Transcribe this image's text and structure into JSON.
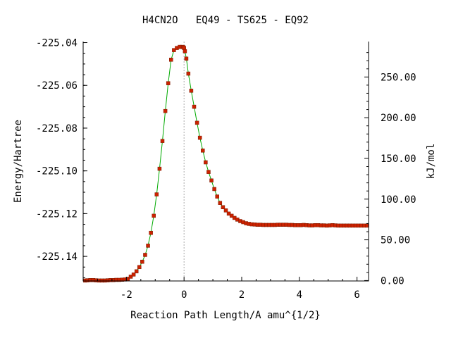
{
  "chart_data": {
    "type": "line",
    "title": "H4CN2O   EQ49 - TS625 - EQ92",
    "xlabel": "Reaction Path Length/A amu^{1/2}",
    "ylabel": "Energy/Hartree",
    "y2label": "kJ/mol",
    "xlim": [
      -3.5,
      6.4
    ],
    "ylim": [
      -225.1515,
      -225.0395
    ],
    "x_ticks": [
      -2,
      0,
      2,
      4,
      6
    ],
    "x_tick_labels": [
      "-2",
      "0",
      "2",
      "4",
      "6"
    ],
    "y_ticks": [
      -225.04,
      -225.06,
      -225.08,
      -225.1,
      -225.12,
      -225.14
    ],
    "y_tick_labels": [
      "-225.04",
      "-225.06",
      "-225.08",
      "-225.10",
      "-225.12",
      "-225.14"
    ],
    "y2_ticks": [
      0,
      50,
      100,
      150,
      200,
      250
    ],
    "y2_tick_labels": [
      "0.00",
      "50.00",
      "100.00",
      "150.00",
      "200.00",
      "250.00"
    ],
    "y2_ref_energy": -225.1513,
    "hartree_to_kjmol": 2625.5,
    "ts_x": 0,
    "colors": {
      "line": "#00aa00",
      "marker": "#cc2200",
      "marker_edge": "#7a1a00",
      "ts_line": "#aaaaaa",
      "axis": "#000000"
    },
    "series": [
      {
        "x": [
          -3.43,
          -3.35,
          -3.25,
          -3.15,
          -3.05,
          -2.95,
          -2.85,
          -2.75,
          -2.65,
          -2.55,
          -2.45,
          -2.35,
          -2.25,
          -2.15,
          -2.05,
          -1.95,
          -1.85,
          -1.75,
          -1.65,
          -1.55,
          -1.45,
          -1.35,
          -1.25,
          -1.15,
          -1.05,
          -0.95,
          -0.85,
          -0.75,
          -0.65,
          -0.55,
          -0.45,
          -0.35,
          -0.25,
          -0.15,
          -0.08,
          -0.03,
          0.0,
          0.03,
          0.08,
          0.15,
          0.25,
          0.35,
          0.45,
          0.55,
          0.65,
          0.75,
          0.85,
          0.95,
          1.05,
          1.15,
          1.25,
          1.35,
          1.45,
          1.55,
          1.65,
          1.75,
          1.85,
          1.95,
          2.05,
          2.15,
          2.25,
          2.35,
          2.45,
          2.55,
          2.65,
          2.75,
          2.85,
          2.95,
          3.05,
          3.15,
          3.25,
          3.35,
          3.45,
          3.55,
          3.65,
          3.75,
          3.85,
          3.95,
          4.05,
          4.15,
          4.25,
          4.35,
          4.45,
          4.55,
          4.65,
          4.75,
          4.85,
          4.95,
          5.05,
          5.15,
          5.25,
          5.35,
          5.45,
          5.55,
          5.65,
          5.75,
          5.85,
          5.95,
          6.05,
          6.15,
          6.25,
          6.35
        ],
        "y": [
          -225.1513,
          -225.1512,
          -225.1511,
          -225.1511,
          -225.1512,
          -225.1513,
          -225.1513,
          -225.1513,
          -225.1512,
          -225.1511,
          -225.1511,
          -225.151,
          -225.151,
          -225.1509,
          -225.1508,
          -225.1505,
          -225.1495,
          -225.1485,
          -225.147,
          -225.145,
          -225.1425,
          -225.1393,
          -225.135,
          -225.129,
          -225.121,
          -225.111,
          -225.099,
          -225.086,
          -225.072,
          -225.059,
          -225.048,
          -225.0435,
          -225.0425,
          -225.042,
          -225.042,
          -225.0421,
          -225.0425,
          -225.044,
          -225.0475,
          -225.0545,
          -225.0625,
          -225.07,
          -225.0775,
          -225.0845,
          -225.0905,
          -225.096,
          -225.1005,
          -225.1045,
          -225.1085,
          -225.112,
          -225.115,
          -225.117,
          -225.1185,
          -225.12,
          -225.121,
          -225.122,
          -225.1228,
          -225.1235,
          -225.124,
          -225.1245,
          -225.1248,
          -225.125,
          -225.1251,
          -225.1252,
          -225.1252,
          -225.1253,
          -225.1253,
          -225.1253,
          -225.1253,
          -225.1253,
          -225.1252,
          -225.1252,
          -225.1252,
          -225.1252,
          -225.1253,
          -225.1253,
          -225.1254,
          -225.1254,
          -225.1254,
          -225.1253,
          -225.1254,
          -225.1255,
          -225.1255,
          -225.1254,
          -225.1254,
          -225.1255,
          -225.1255,
          -225.1256,
          -225.1255,
          -225.1254,
          -225.1255,
          -225.1256,
          -225.1256,
          -225.1256,
          -225.1256,
          -225.1256,
          -225.1256,
          -225.1256,
          -225.1256,
          -225.1256,
          -225.1256,
          -225.1256
        ]
      }
    ]
  }
}
